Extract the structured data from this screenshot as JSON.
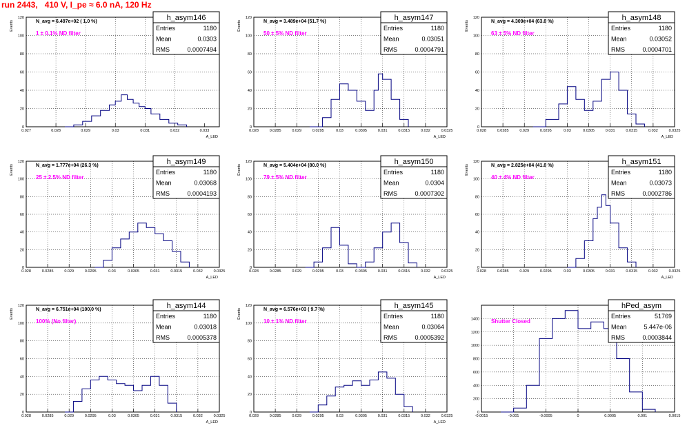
{
  "run_title": "run 2443,   410 V, I_pe ≈ 6.0 nA, 120 Hz",
  "stats_labels": [
    "Entries",
    "Mean",
    "RMS"
  ],
  "colors": {
    "hist": "#000080",
    "title": "#ff0000",
    "annotation": "#ff00ff",
    "grid": "#000000"
  },
  "chart_data": [
    {
      "type": "bar",
      "title": "h_asym146",
      "ylabel": "Events",
      "xlabel": "A_LED",
      "navg": "N_avg = 6.497e+02 ( 1.0 %)",
      "annotation": "1 ± 0.1% ND filter",
      "entries": "1180",
      "mean": "0.0303",
      "rms": "0.0007494",
      "xlim": [
        0.027,
        0.0335
      ],
      "ylim": [
        0,
        120
      ],
      "xticks": [
        "0.027",
        "0.028",
        "0.029",
        "0.03",
        "0.031",
        "0.032",
        "0.033"
      ],
      "xtick_values": [
        0.027,
        0.028,
        0.029,
        0.03,
        0.031,
        0.032,
        0.033
      ],
      "yticks": [
        0,
        20,
        40,
        60,
        80,
        100,
        120
      ],
      "x": [
        0.0283,
        0.0286,
        0.0289,
        0.0292,
        0.0295,
        0.0298,
        0.03,
        0.0302,
        0.0304,
        0.0306,
        0.0308,
        0.031,
        0.0312,
        0.0315,
        0.0318,
        0.0321,
        0.0324
      ],
      "values": [
        0,
        2,
        6,
        12,
        18,
        24,
        28,
        35,
        30,
        26,
        22,
        20,
        14,
        8,
        4,
        2,
        0
      ]
    },
    {
      "type": "bar",
      "title": "h_asym147",
      "ylabel": "Events",
      "xlabel": "A_LED",
      "navg": "N_avg = 3.489e+04 (51.7 %)",
      "annotation": "50 ± 5% ND filter",
      "entries": "1180",
      "mean": "0.03051",
      "rms": "0.0004791",
      "xlim": [
        0.028,
        0.0325
      ],
      "ylim": [
        0,
        120
      ],
      "xticks": [
        "0.028",
        "0.0285",
        "0.029",
        "0.0295",
        "0.03",
        "0.0305",
        "0.031",
        "0.0315",
        "0.032",
        "0.0325"
      ],
      "xtick_values": [
        0.028,
        0.0285,
        0.029,
        0.0295,
        0.03,
        0.0305,
        0.031,
        0.0315,
        0.032,
        0.0325
      ],
      "yticks": [
        0,
        20,
        40,
        60,
        80,
        100,
        120
      ],
      "x": [
        0.0293,
        0.0296,
        0.0298,
        0.03,
        0.0302,
        0.0304,
        0.0306,
        0.0308,
        0.0309,
        0.031,
        0.0312,
        0.0314,
        0.0316
      ],
      "values": [
        0,
        10,
        30,
        47,
        40,
        28,
        18,
        40,
        58,
        52,
        30,
        8,
        0
      ]
    },
    {
      "type": "bar",
      "title": "h_asym148",
      "ylabel": "Events",
      "xlabel": "A_LED",
      "navg": "N_avg = 4.309e+04 (63.8 %)",
      "annotation": "63 ± 5% ND filter",
      "entries": "1180",
      "mean": "0.03052",
      "rms": "0.0004701",
      "xlim": [
        0.028,
        0.0325
      ],
      "ylim": [
        0,
        120
      ],
      "xticks": [
        "0.028",
        "0.0285",
        "0.029",
        "0.0295",
        "0.03",
        "0.0305",
        "0.031",
        "0.0315",
        "0.032",
        "0.0325"
      ],
      "xtick_values": [
        0.028,
        0.0285,
        0.029,
        0.0295,
        0.03,
        0.0305,
        0.031,
        0.0315,
        0.032,
        0.0325
      ],
      "yticks": [
        0,
        20,
        40,
        60,
        80,
        100,
        120
      ],
      "x": [
        0.0292,
        0.0295,
        0.0298,
        0.03,
        0.0302,
        0.0304,
        0.0306,
        0.0308,
        0.031,
        0.0312,
        0.0314,
        0.0316,
        0.0318
      ],
      "values": [
        0,
        8,
        25,
        44,
        30,
        18,
        28,
        52,
        60,
        40,
        14,
        3,
        0
      ]
    },
    {
      "type": "bar",
      "title": "h_asym149",
      "ylabel": "Events",
      "xlabel": "A_LED",
      "navg": "N_avg = 1.777e+04 (26.3 %)",
      "annotation": "25 ± 2.5% ND filter",
      "entries": "1180",
      "mean": "0.03068",
      "rms": "0.0004193",
      "xlim": [
        0.028,
        0.0325
      ],
      "ylim": [
        0,
        120
      ],
      "xticks": [
        "0.028",
        "0.0285",
        "0.029",
        "0.0295",
        "0.03",
        "0.0305",
        "0.031",
        "0.0315",
        "0.032",
        "0.0325"
      ],
      "xtick_values": [
        0.028,
        0.0285,
        0.029,
        0.0295,
        0.03,
        0.0305,
        0.031,
        0.0315,
        0.032,
        0.0325
      ],
      "yticks": [
        0,
        20,
        40,
        60,
        80,
        100,
        120
      ],
      "x": [
        0.0296,
        0.0298,
        0.03,
        0.0302,
        0.0304,
        0.0306,
        0.0308,
        0.031,
        0.0312,
        0.0314,
        0.0316,
        0.0318
      ],
      "values": [
        0,
        8,
        22,
        32,
        40,
        50,
        45,
        38,
        30,
        18,
        6,
        0
      ]
    },
    {
      "type": "bar",
      "title": "h_asym150",
      "ylabel": "Events",
      "xlabel": "A_LED",
      "navg": "N_avg = 5.404e+04 (80.0 %)",
      "annotation": "79 ± 5% ND filter",
      "entries": "1180",
      "mean": "0.0304",
      "rms": "0.0007302",
      "xlim": [
        0.028,
        0.0325
      ],
      "ylim": [
        0,
        120
      ],
      "xticks": [
        "0.028",
        "0.0285",
        "0.029",
        "0.0295",
        "0.03",
        "0.0305",
        "0.031",
        "0.0315",
        "0.032",
        "0.0325"
      ],
      "xtick_values": [
        0.028,
        0.0285,
        0.029,
        0.0295,
        0.03,
        0.0305,
        0.031,
        0.0315,
        0.032,
        0.0325
      ],
      "yticks": [
        0,
        20,
        40,
        60,
        80,
        100,
        120
      ],
      "x": [
        0.0292,
        0.0294,
        0.0296,
        0.0298,
        0.03,
        0.0302,
        0.0304,
        0.0306,
        0.0308,
        0.031,
        0.0312,
        0.0314,
        0.0316,
        0.0318
      ],
      "values": [
        0,
        6,
        22,
        45,
        25,
        4,
        0,
        6,
        22,
        40,
        50,
        28,
        5,
        0
      ]
    },
    {
      "type": "bar",
      "title": "h_asym151",
      "ylabel": "Events",
      "xlabel": "A_LED",
      "navg": "N_avg = 2.825e+04 (41.8 %)",
      "annotation": "40 ± 4% ND filter",
      "entries": "1180",
      "mean": "0.03073",
      "rms": "0.0002786",
      "xlim": [
        0.028,
        0.0325
      ],
      "ylim": [
        0,
        120
      ],
      "xticks": [
        "0.028",
        "0.0285",
        "0.029",
        "0.0295",
        "0.03",
        "0.0305",
        "0.031",
        "0.0315",
        "0.032",
        "0.0325"
      ],
      "xtick_values": [
        0.028,
        0.0285,
        0.029,
        0.0295,
        0.03,
        0.0305,
        0.031,
        0.0315,
        0.032,
        0.0325
      ],
      "yticks": [
        0,
        20,
        40,
        60,
        80,
        100,
        120
      ],
      "x": [
        0.03,
        0.0302,
        0.0304,
        0.0306,
        0.0307,
        0.0308,
        0.0309,
        0.031,
        0.0312,
        0.0314,
        0.0316
      ],
      "values": [
        0,
        10,
        30,
        55,
        68,
        82,
        70,
        50,
        22,
        6,
        0
      ]
    },
    {
      "type": "bar",
      "title": "h_asym144",
      "ylabel": "Events",
      "xlabel": "A_LED",
      "navg": "N_avg = 6.751e+04 (100.0 %)",
      "annotation": "100% (No filter)",
      "entries": "1180",
      "mean": "0.03018",
      "rms": "0.0005378",
      "xlim": [
        0.028,
        0.0325
      ],
      "ylim": [
        0,
        120
      ],
      "xticks": [
        "0.028",
        "0.0285",
        "0.029",
        "0.0295",
        "0.03",
        "0.0305",
        "0.031",
        "0.0315",
        "0.032",
        "0.0325"
      ],
      "xtick_values": [
        0.028,
        0.0285,
        0.029,
        0.0295,
        0.03,
        0.0305,
        0.031,
        0.0315,
        0.032,
        0.0325
      ],
      "yticks": [
        0,
        20,
        40,
        60,
        80,
        100,
        120
      ],
      "x": [
        0.0289,
        0.0291,
        0.0293,
        0.0295,
        0.0297,
        0.0299,
        0.0301,
        0.0303,
        0.0305,
        0.0307,
        0.0309,
        0.0311,
        0.0313,
        0.0315
      ],
      "values": [
        0,
        12,
        26,
        36,
        40,
        36,
        32,
        30,
        24,
        30,
        40,
        30,
        10,
        0
      ]
    },
    {
      "type": "bar",
      "title": "h_asym145",
      "ylabel": "Events",
      "xlabel": "A_LED",
      "navg": "N_avg = 6.576e+03 ( 9.7 %)",
      "annotation": "10 ± 1% ND filter",
      "entries": "1180",
      "mean": "0.03064",
      "rms": "0.0005392",
      "xlim": [
        0.028,
        0.0325
      ],
      "ylim": [
        0,
        120
      ],
      "xticks": [
        "0.028",
        "0.0285",
        "0.029",
        "0.0295",
        "0.03",
        "0.0305",
        "0.031",
        "0.0315",
        "0.032",
        "0.0325"
      ],
      "xtick_values": [
        0.028,
        0.0285,
        0.029,
        0.0295,
        0.03,
        0.0305,
        0.031,
        0.0315,
        0.032,
        0.0325
      ],
      "yticks": [
        0,
        20,
        40,
        60,
        80,
        100,
        120
      ],
      "x": [
        0.0293,
        0.0295,
        0.0297,
        0.0299,
        0.0301,
        0.0303,
        0.0305,
        0.0307,
        0.0309,
        0.0311,
        0.0313,
        0.0315,
        0.0317
      ],
      "values": [
        0,
        8,
        18,
        28,
        30,
        35,
        30,
        36,
        45,
        38,
        20,
        6,
        0
      ]
    },
    {
      "type": "bar",
      "title": "hPed_asym",
      "ylabel": "",
      "xlabel": "",
      "navg": "",
      "annotation": "Shutter Closed",
      "entries": "51769",
      "mean": "5.447e-06",
      "rms": "0.0003844",
      "xlim": [
        -0.0015,
        0.0015
      ],
      "ylim": [
        0,
        1600
      ],
      "xticks": [
        "-0.0015",
        "-0.001",
        "-0.0005",
        "0",
        "0.0005",
        "0.001",
        "0.0015"
      ],
      "xtick_values": [
        -0.0015,
        -0.001,
        -0.0005,
        0,
        0.0005,
        0.001,
        0.0015
      ],
      "yticks": [
        0,
        200,
        400,
        600,
        800,
        1000,
        1200,
        1400
      ],
      "x": [
        -0.0012,
        -0.001,
        -0.0008,
        -0.0006,
        -0.0004,
        -0.0002,
        0,
        0.0002,
        0.0004,
        0.0006,
        0.0008,
        0.001,
        0.0012
      ],
      "values": [
        0,
        60,
        400,
        1100,
        1400,
        1520,
        1250,
        1350,
        1250,
        800,
        300,
        40,
        0
      ]
    }
  ]
}
